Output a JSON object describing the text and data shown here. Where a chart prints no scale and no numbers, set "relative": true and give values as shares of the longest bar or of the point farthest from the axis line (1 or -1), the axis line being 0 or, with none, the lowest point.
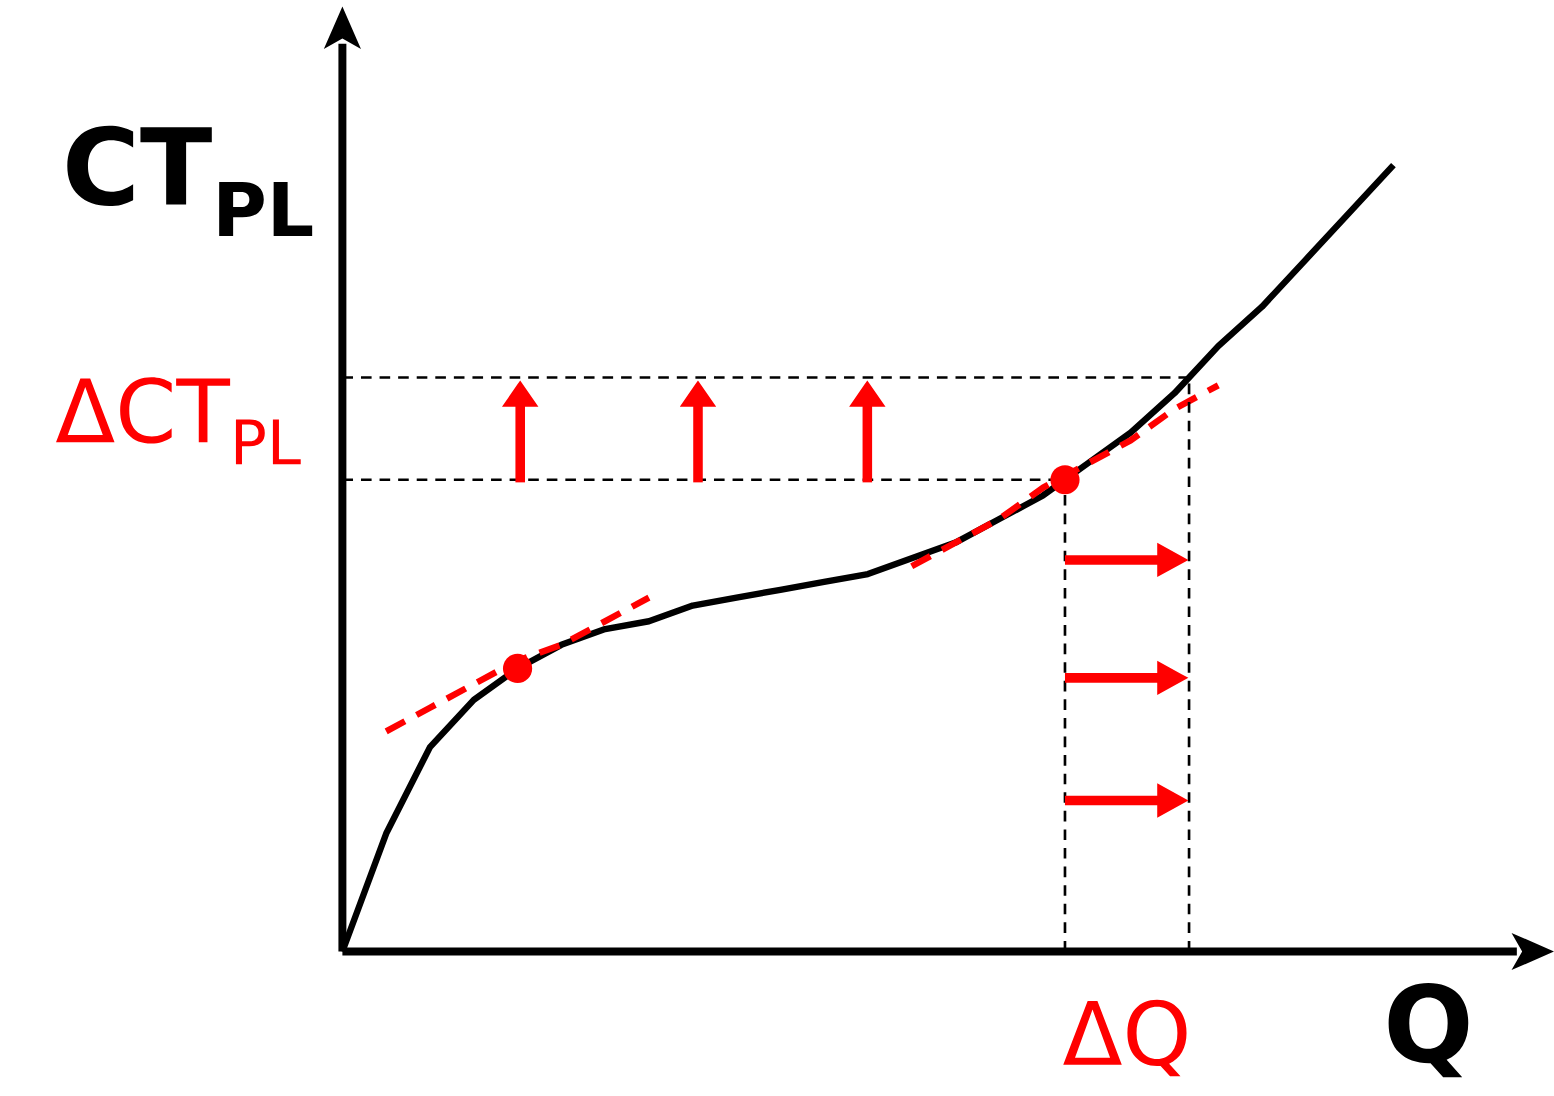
{
  "chart_data": {
    "type": "line",
    "relative": true,
    "xlabel": "Q",
    "ylabel": "CT$_{PL}$",
    "categories": [
      null,
      null,
      null,
      null,
      null,
      null,
      null,
      null,
      null,
      null,
      null,
      null,
      null,
      null,
      null,
      null,
      null,
      null,
      null,
      null,
      null,
      null,
      null,
      null,
      null
    ],
    "series": [
      {
        "color": "#000000",
        "values": [
          0.0,
          0.15,
          0.26,
          0.32,
          0.36,
          0.39,
          0.41,
          0.42,
          0.44,
          0.45,
          0.46,
          0.47,
          0.48,
          0.5,
          0.52,
          0.55,
          0.58,
          0.62,
          0.66,
          0.71,
          0.77,
          0.82,
          0.88,
          0.94,
          1.0
        ]
      },
      {
        "color": "#ff0000",
        "line_style": "dashed",
        "values": [
          null,
          0.28,
          0.31,
          0.34,
          0.37,
          0.39,
          0.42,
          0.45,
          null,
          null,
          null,
          null,
          null,
          null,
          null,
          null,
          null,
          null,
          null,
          null,
          null,
          null,
          null,
          null,
          null
        ]
      },
      {
        "color": "#ff0000",
        "line_style": "dashed",
        "values": [
          null,
          null,
          null,
          null,
          null,
          null,
          null,
          null,
          null,
          null,
          null,
          null,
          null,
          0.49,
          0.52,
          0.55,
          0.59,
          0.62,
          0.65,
          0.69,
          0.72,
          null,
          null,
          null,
          null
        ]
      }
    ],
    "ref_lines": [
      {
        "axis": "y",
        "value": 0.6
      },
      {
        "axis": "y",
        "value": 0.73
      }
    ],
    "annotations": [
      "ΔCT$_{PL}$",
      "ΔQ"
    ]
  }
}
